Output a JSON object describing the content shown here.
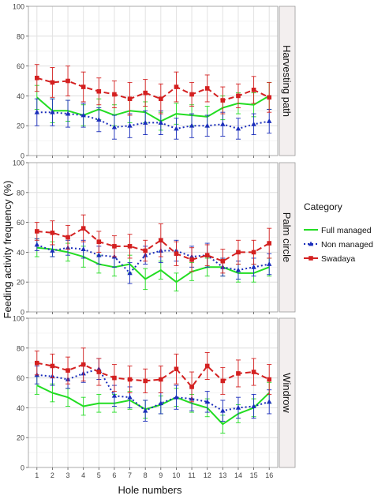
{
  "chart_data": {
    "type": "line",
    "xlabel": "Hole numbers",
    "ylabel": "Feeding activity frequency (%)",
    "x": [
      1,
      2,
      3,
      4,
      5,
      6,
      7,
      8,
      9,
      10,
      11,
      12,
      13,
      14,
      15,
      16
    ],
    "ylim": [
      0,
      100
    ],
    "yticks": [
      0,
      20,
      40,
      60,
      80,
      100
    ],
    "grid": true,
    "legend": {
      "title": "Category",
      "placement": "right",
      "entries": [
        "Full managed",
        "Non managed",
        "Swadaya"
      ]
    },
    "series_styles": [
      {
        "name": "Full managed",
        "color": "#22dd22",
        "dash": "solid",
        "marker": "none"
      },
      {
        "name": "Non managed",
        "color": "#1a2dbb",
        "dash": "dotted",
        "marker": "triangle"
      },
      {
        "name": "Swadaya",
        "color": "#d42020",
        "dash": "dashed",
        "marker": "square"
      }
    ],
    "panels": [
      {
        "label": "Harvesting path",
        "series": [
          {
            "name": "Full managed",
            "values": [
              39,
              30,
              30,
              27,
              31,
              27,
              30,
              29,
              23,
              28,
              27,
              26,
              32,
              35,
              34,
              40
            ],
            "err": [
              8,
              8,
              7,
              7,
              7,
              7,
              8,
              7,
              6,
              7,
              7,
              7,
              8,
              7,
              8,
              9
            ]
          },
          {
            "name": "Non managed",
            "values": [
              29,
              29,
              28,
              27,
              24,
              19,
              20,
              22,
              22,
              18,
              20,
              20,
              21,
              18,
              21,
              23
            ],
            "err": [
              9,
              9,
              9,
              8,
              8,
              8,
              8,
              8,
              8,
              7,
              8,
              7,
              8,
              7,
              7,
              8
            ]
          },
          {
            "name": "Swadaya",
            "values": [
              52,
              49,
              50,
              46,
              43,
              41,
              38,
              42,
              38,
              46,
              41,
              45,
              37,
              40,
              44,
              39
            ],
            "err": [
              9,
              10,
              10,
              10,
              9,
              9,
              11,
              9,
              10,
              10,
              8,
              9,
              9,
              8,
              9,
              10
            ]
          }
        ]
      },
      {
        "label": "Palm circle",
        "series": [
          {
            "name": "Full managed",
            "values": [
              43,
              42,
              40,
              37,
              32,
              30,
              32,
              22,
              28,
              20,
              27,
              30,
              30,
              26,
              26,
              30
            ],
            "err": [
              6,
              5,
              6,
              7,
              6,
              6,
              6,
              7,
              6,
              6,
              6,
              6,
              6,
              6,
              6,
              6
            ]
          },
          {
            "name": "Non managed",
            "values": [
              45,
              41,
              43,
              42,
              38,
              37,
              26,
              38,
              41,
              41,
              37,
              38,
              30,
              28,
              30,
              32
            ],
            "err": [
              4,
              4,
              5,
              6,
              6,
              7,
              7,
              6,
              8,
              7,
              7,
              8,
              6,
              6,
              6,
              7
            ]
          },
          {
            "name": "Swadaya",
            "values": [
              54,
              53,
              50,
              56,
              47,
              44,
              44,
              41,
              48,
              39,
              35,
              38,
              34,
              40,
              40,
              46
            ],
            "err": [
              6,
              8,
              8,
              9,
              7,
              7,
              8,
              7,
              11,
              8,
              8,
              7,
              8,
              8,
              8,
              10
            ]
          }
        ]
      },
      {
        "label": "Windrow",
        "series": [
          {
            "name": "Full managed",
            "values": [
              55,
              50,
              47,
              41,
              43,
              43,
              45,
              39,
              42,
              47,
              43,
              40,
              29,
              36,
              40,
              50
            ],
            "err": [
              6,
              6,
              6,
              6,
              6,
              6,
              6,
              6,
              6,
              6,
              6,
              6,
              6,
              6,
              6,
              7
            ]
          },
          {
            "name": "Non managed",
            "values": [
              62,
              61,
              59,
              63,
              66,
              48,
              47,
              38,
              43,
              47,
              46,
              44,
              38,
              40,
              41,
              44
            ],
            "err": [
              6,
              6,
              6,
              6,
              7,
              7,
              7,
              7,
              7,
              8,
              8,
              7,
              7,
              7,
              8,
              8
            ]
          },
          {
            "name": "Swadaya",
            "values": [
              70,
              68,
              65,
              69,
              64,
              60,
              59,
              58,
              59,
              66,
              54,
              68,
              58,
              63,
              64,
              59
            ],
            "err": [
              8,
              8,
              9,
              11,
              9,
              9,
              9,
              8,
              9,
              10,
              10,
              9,
              9,
              9,
              9,
              10
            ]
          }
        ]
      }
    ]
  }
}
